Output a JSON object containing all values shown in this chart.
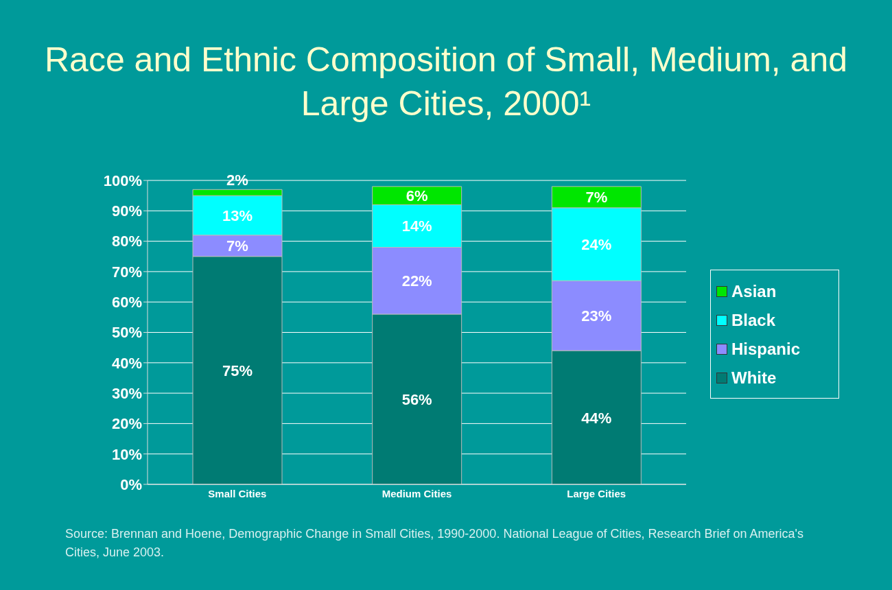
{
  "chart_data": {
    "type": "bar",
    "title": "Race and Ethnic Composition of Small, Medium, and Large Cities, 2000¹",
    "categories": [
      "Small Cities",
      "Medium Cities",
      "Large Cities"
    ],
    "series": [
      {
        "name": "White",
        "color": "#007b73",
        "values": [
          75,
          56,
          44
        ],
        "value_labels": [
          "75%",
          "56%",
          "44%"
        ]
      },
      {
        "name": "Hispanic",
        "color": "#8c8cff",
        "values": [
          7,
          22,
          23
        ],
        "value_labels": [
          "7%",
          "22%",
          "23%"
        ]
      },
      {
        "name": "Black",
        "color": "#00ffff",
        "values": [
          13,
          14,
          24
        ],
        "value_labels": [
          "13%",
          "14%",
          "24%"
        ]
      },
      {
        "name": "Asian",
        "color": "#00e600",
        "values": [
          2,
          6,
          7
        ],
        "value_labels": [
          "2%",
          "6%",
          "7%"
        ]
      }
    ],
    "stacked": true,
    "ylim": [
      0,
      100
    ],
    "yticks": [
      {
        "value": 0,
        "label": "0%"
      },
      {
        "value": 10,
        "label": "10%"
      },
      {
        "value": 20,
        "label": "20%"
      },
      {
        "value": 30,
        "label": "30%"
      },
      {
        "value": 40,
        "label": "40%"
      },
      {
        "value": 50,
        "label": "50%"
      },
      {
        "value": 60,
        "label": "60%"
      },
      {
        "value": 70,
        "label": "70%"
      },
      {
        "value": 80,
        "label": "80%"
      },
      {
        "value": 90,
        "label": "90%"
      },
      {
        "value": 100,
        "label": "100%"
      }
    ],
    "grid": "y",
    "legend": "right",
    "annotations": [
      "Source: Brennan and Hoene, Demographic Change in Small Cities, 1990-2000. National League of Cities, Research Brief on America's Cities, June 2003."
    ]
  }
}
